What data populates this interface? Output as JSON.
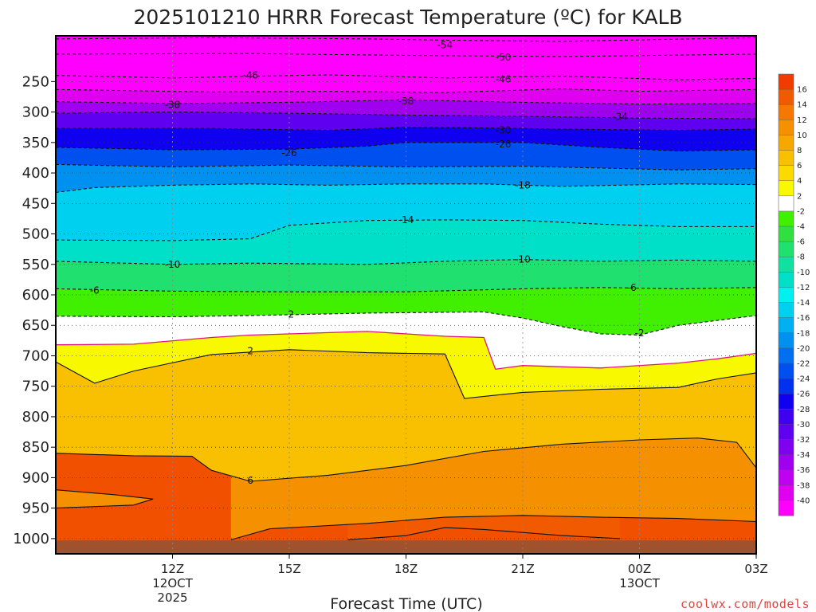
{
  "chart_data": {
    "type": "heatmap",
    "title": "2025101210 HRRR Forecast Temperature (ºC) for KALB",
    "xlabel": "Forecast Time (UTC)",
    "ylabel": "",
    "x_range_hours": [
      9,
      27
    ],
    "y_range_hpa": [
      175,
      1025
    ],
    "y_ticks": [
      250,
      300,
      350,
      400,
      450,
      500,
      550,
      600,
      650,
      700,
      750,
      800,
      850,
      900,
      950,
      1000
    ],
    "x_ticks": [
      {
        "hour": 12,
        "label": "12Z",
        "date": "12OCT",
        "year": "2025"
      },
      {
        "hour": 15,
        "label": "15Z",
        "date": "",
        "year": ""
      },
      {
        "hour": 18,
        "label": "18Z",
        "date": "",
        "year": ""
      },
      {
        "hour": 21,
        "label": "21Z",
        "date": "",
        "year": ""
      },
      {
        "hour": 24,
        "label": "00Z",
        "date": "13OCT",
        "year": ""
      },
      {
        "hour": 27,
        "label": "03Z",
        "date": "",
        "year": ""
      }
    ],
    "colorbar": {
      "labels": [
        "16",
        "14",
        "12",
        "10",
        "8",
        "6",
        "4",
        "2",
        "-2",
        "-4",
        "-6",
        "-8",
        "-10",
        "-12",
        "-14",
        "-16",
        "-18",
        "-20",
        "-22",
        "-24",
        "-26",
        "-28",
        "-30",
        "-32",
        "-34",
        "-36",
        "-38",
        "-40"
      ],
      "colors": [
        "#f03c00",
        "#f25a00",
        "#f57800",
        "#f59000",
        "#f7a800",
        "#f8c000",
        "#fada00",
        "#f8f800",
        "#ffffff",
        "#40f000",
        "#30e040",
        "#20e070",
        "#10e0a0",
        "#00e0c8",
        "#00f0f0",
        "#00d0f0",
        "#00b0f0",
        "#0090f0",
        "#0070f0",
        "#0050f0",
        "#0030f0",
        "#1000f0",
        "#4000f0",
        "#6000f0",
        "#8000f0",
        "#a000f0",
        "#c000f0",
        "#e000f0",
        "#ff00ff"
      ]
    },
    "isotherms": [
      {
        "temp": -54,
        "points": [
          [
            9,
            180
          ],
          [
            13,
            178
          ],
          [
            17,
            180
          ],
          [
            19,
            182
          ],
          [
            22,
            184
          ],
          [
            27,
            178
          ],
          [
            27.2,
            176
          ]
        ]
      },
      {
        "temp": -50,
        "points": [
          [
            9,
            205
          ],
          [
            14,
            204
          ],
          [
            18,
            207
          ],
          [
            22,
            209
          ],
          [
            27,
            205
          ]
        ]
      },
      {
        "temp": -46,
        "points": [
          [
            9,
            240
          ],
          [
            12,
            244
          ],
          [
            16,
            239
          ],
          [
            19,
            244
          ],
          [
            22,
            241
          ],
          [
            25,
            247
          ],
          [
            27,
            245
          ]
        ]
      },
      {
        "temp": -42,
        "points": [
          [
            9,
            263
          ],
          [
            13,
            267
          ],
          [
            16,
            266
          ],
          [
            19,
            268
          ],
          [
            22,
            262
          ],
          [
            24,
            266
          ],
          [
            27,
            263
          ]
        ]
      },
      {
        "temp": -38,
        "points": [
          [
            9,
            283
          ],
          [
            12,
            286
          ],
          [
            15,
            284
          ],
          [
            18,
            280
          ],
          [
            21,
            284
          ],
          [
            24,
            287
          ],
          [
            27,
            286
          ]
        ]
      },
      {
        "temp": -34,
        "points": [
          [
            9,
            302
          ],
          [
            12,
            300
          ],
          [
            15,
            302
          ],
          [
            18,
            305
          ],
          [
            21,
            307
          ],
          [
            24,
            310
          ],
          [
            27,
            311
          ]
        ]
      },
      {
        "temp": -30,
        "points": [
          [
            9,
            327
          ],
          [
            13,
            327
          ],
          [
            16,
            330
          ],
          [
            18,
            325
          ],
          [
            20,
            326
          ],
          [
            22,
            328
          ],
          [
            25,
            330
          ],
          [
            27,
            328
          ]
        ]
      },
      {
        "temp": -26,
        "points": [
          [
            9,
            358
          ],
          [
            12,
            362
          ],
          [
            15,
            361
          ],
          [
            17,
            356
          ],
          [
            18,
            350
          ],
          [
            21,
            350
          ],
          [
            23,
            358
          ],
          [
            25,
            364
          ],
          [
            27,
            362
          ]
        ]
      },
      {
        "temp": -22,
        "points": [
          [
            9,
            386
          ],
          [
            12,
            390
          ],
          [
            15,
            387
          ],
          [
            18,
            390
          ],
          [
            21,
            389
          ],
          [
            23,
            392
          ],
          [
            25,
            395
          ],
          [
            27,
            393
          ]
        ]
      },
      {
        "temp": -18,
        "points": [
          [
            9,
            432
          ],
          [
            10,
            424
          ],
          [
            12,
            420
          ],
          [
            14,
            418
          ],
          [
            16,
            420
          ],
          [
            18,
            418
          ],
          [
            20,
            418
          ],
          [
            22,
            422
          ],
          [
            25,
            418
          ],
          [
            27,
            419
          ]
        ]
      },
      {
        "temp": -14,
        "points": [
          [
            9,
            510
          ],
          [
            12,
            511
          ],
          [
            14,
            508
          ],
          [
            15,
            486
          ],
          [
            17,
            478
          ],
          [
            19,
            477
          ],
          [
            21,
            478
          ],
          [
            23,
            484
          ],
          [
            25,
            488
          ],
          [
            27,
            488
          ]
        ]
      },
      {
        "temp": -10,
        "points": [
          [
            9,
            545
          ],
          [
            12,
            550
          ],
          [
            14,
            548
          ],
          [
            17,
            550
          ],
          [
            19,
            545
          ],
          [
            21,
            542
          ],
          [
            23,
            545
          ],
          [
            25,
            543
          ],
          [
            27,
            545
          ]
        ]
      },
      {
        "temp": -6,
        "points": [
          [
            9,
            590
          ],
          [
            12,
            594
          ],
          [
            15,
            595
          ],
          [
            18,
            595
          ],
          [
            21,
            590
          ],
          [
            23,
            588
          ],
          [
            25,
            590
          ],
          [
            27,
            588
          ]
        ]
      },
      {
        "temp": -2,
        "points": [
          [
            9,
            635
          ],
          [
            12,
            636
          ],
          [
            14,
            634
          ],
          [
            17,
            630
          ],
          [
            20,
            628
          ],
          [
            21,
            638
          ],
          [
            22,
            652
          ],
          [
            23,
            664
          ],
          [
            24,
            666
          ],
          [
            25,
            650
          ],
          [
            27,
            634
          ]
        ]
      },
      {
        "temp": 2,
        "points": [
          [
            9,
            710
          ],
          [
            10,
            745
          ],
          [
            11,
            725
          ],
          [
            13,
            698
          ],
          [
            15,
            690
          ],
          [
            17,
            695
          ],
          [
            19,
            697
          ],
          [
            19.5,
            770
          ],
          [
            21,
            760
          ],
          [
            23,
            755
          ],
          [
            25,
            752
          ],
          [
            26,
            738
          ],
          [
            27,
            728
          ]
        ]
      },
      {
        "temp": 6,
        "points": [
          [
            9,
            860
          ],
          [
            11,
            864
          ],
          [
            12.5,
            865
          ],
          [
            13,
            888
          ],
          [
            14,
            906
          ],
          [
            16,
            896
          ],
          [
            18,
            880
          ],
          [
            20,
            857
          ],
          [
            22,
            845
          ],
          [
            24,
            838
          ],
          [
            25.5,
            835
          ],
          [
            26.5,
            842
          ],
          [
            27,
            884
          ]
        ]
      },
      {
        "temp": 10,
        "points": [
          [
            9,
            920
          ],
          [
            10.5,
            928
          ],
          [
            11.5,
            935
          ],
          [
            11,
            945
          ],
          [
            9,
            950
          ]
        ]
      },
      {
        "temp": 10,
        "points": [
          [
            13.5,
            1002
          ],
          [
            14.5,
            984
          ],
          [
            17,
            975
          ],
          [
            19,
            965
          ],
          [
            21,
            962
          ],
          [
            23,
            965
          ],
          [
            25,
            967
          ],
          [
            27,
            972
          ]
        ]
      },
      {
        "temp": 14,
        "points": [
          [
            16.5,
            1002
          ],
          [
            18,
            995
          ],
          [
            19,
            982
          ],
          [
            20,
            985
          ],
          [
            22,
            995
          ],
          [
            23.5,
            1000
          ]
        ]
      }
    ],
    "freezing_line": {
      "temp": 0,
      "points": [
        [
          9,
          682
        ],
        [
          11,
          681
        ],
        [
          13,
          670
        ],
        [
          14,
          666
        ],
        [
          17,
          660
        ],
        [
          19,
          668
        ],
        [
          20,
          670
        ],
        [
          20.2,
          705
        ],
        [
          20.3,
          722
        ],
        [
          21,
          716
        ],
        [
          23,
          720
        ],
        [
          25,
          712
        ],
        [
          26,
          705
        ],
        [
          27,
          696
        ]
      ]
    },
    "contour_labels": [
      {
        "text": "-54",
        "hour": 19,
        "hpa": 190
      },
      {
        "text": "-50",
        "hour": 20.5,
        "hpa": 210
      },
      {
        "text": "-46",
        "hour": 14,
        "hpa": 240
      },
      {
        "text": "-46",
        "hour": 20.5,
        "hpa": 246
      },
      {
        "text": "-38",
        "hour": 12,
        "hpa": 288
      },
      {
        "text": "-38",
        "hour": 18,
        "hpa": 282
      },
      {
        "text": "-34",
        "hour": 23.5,
        "hpa": 308
      },
      {
        "text": "-30",
        "hour": 20.5,
        "hpa": 330
      },
      {
        "text": "-26",
        "hour": 15,
        "hpa": 367
      },
      {
        "text": "-26",
        "hour": 20.5,
        "hpa": 353
      },
      {
        "text": "-18",
        "hour": 21,
        "hpa": 420
      },
      {
        "text": "-14",
        "hour": 18,
        "hpa": 477
      },
      {
        "text": "-10",
        "hour": 12,
        "hpa": 550
      },
      {
        "text": "-10",
        "hour": 21,
        "hpa": 542
      },
      {
        "text": "-6",
        "hour": 10,
        "hpa": 593
      },
      {
        "text": "-6",
        "hour": 23.8,
        "hpa": 588
      },
      {
        "text": "-2",
        "hour": 15,
        "hpa": 632
      },
      {
        "text": "-2",
        "hour": 24,
        "hpa": 663
      },
      {
        "text": "2",
        "hour": 14,
        "hpa": 692
      },
      {
        "text": "6",
        "hour": 14,
        "hpa": 905
      }
    ]
  },
  "watermark": "coolwx.com/models"
}
